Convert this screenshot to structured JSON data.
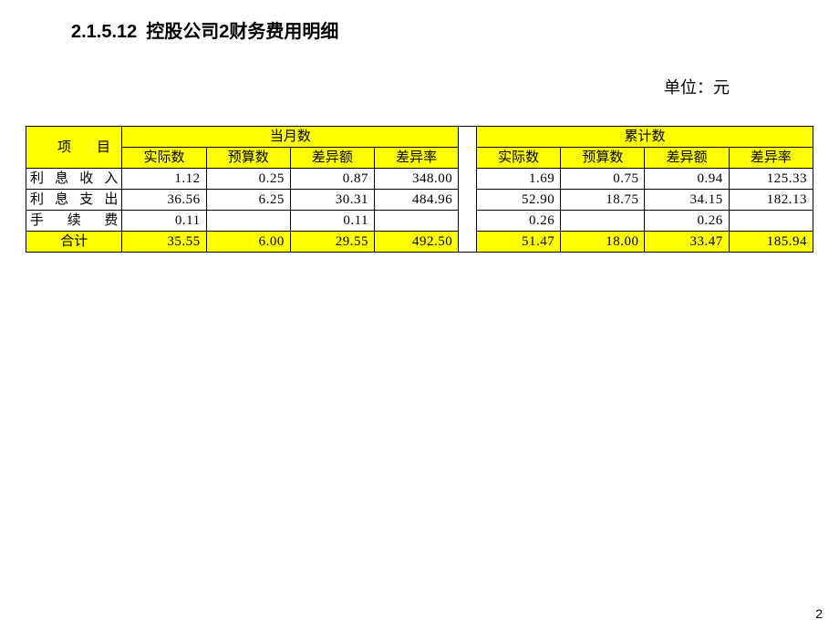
{
  "header": {
    "section_number": "2.1.5.12",
    "section_title": "控股公司2财务费用明细",
    "unit_label": "单位：元"
  },
  "table": {
    "header_color": "#ffff00",
    "text_color": "#000000",
    "border_color": "#000000",
    "background_color": "#ffffff",
    "col_project": "项目",
    "group_month": "当月数",
    "group_cumulative": "累计数",
    "sub_cols": {
      "actual": "实际数",
      "budget": "预算数",
      "variance": "差异额",
      "variance_rate": "差异率"
    },
    "rows": [
      {
        "label": "利息收入",
        "month": {
          "actual": "1.12",
          "budget": "0.25",
          "variance": "0.87",
          "variance_rate": "348.00"
        },
        "cumulative": {
          "actual": "1.69",
          "budget": "0.75",
          "variance": "0.94",
          "variance_rate": "125.33"
        }
      },
      {
        "label": "利息支出",
        "month": {
          "actual": "36.56",
          "budget": "6.25",
          "variance": "30.31",
          "variance_rate": "484.96"
        },
        "cumulative": {
          "actual": "52.90",
          "budget": "18.75",
          "variance": "34.15",
          "variance_rate": "182.13"
        }
      },
      {
        "label": "手续费",
        "month": {
          "actual": "0.11",
          "budget": "",
          "variance": "0.11",
          "variance_rate": ""
        },
        "cumulative": {
          "actual": "0.26",
          "budget": "",
          "variance": "0.26",
          "variance_rate": ""
        }
      }
    ],
    "total": {
      "label": "合计",
      "month": {
        "actual": "35.55",
        "budget": "6.00",
        "variance": "29.55",
        "variance_rate": "492.50"
      },
      "cumulative": {
        "actual": "51.47",
        "budget": "18.00",
        "variance": "33.47",
        "variance_rate": "185.94"
      }
    }
  },
  "page_number": "2"
}
